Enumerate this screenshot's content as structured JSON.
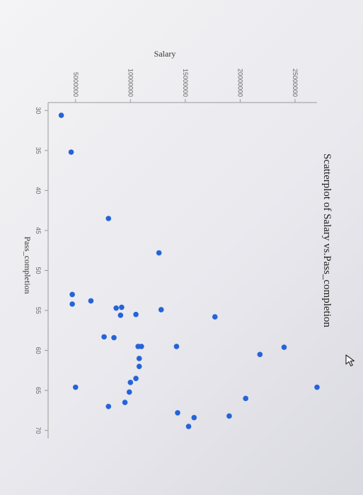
{
  "chart_data": {
    "type": "scatter",
    "title": "Scatterplot of Salary vs.Pass_completion",
    "xlabel": "Pass_completion",
    "ylabel": "Salary",
    "xlim": [
      29,
      71
    ],
    "ylim": [
      2500000,
      27000000
    ],
    "x_ticks": [
      30,
      35,
      40,
      45,
      50,
      55,
      60,
      65,
      70
    ],
    "y_ticks": [
      5000000,
      10000000,
      15000000,
      20000000,
      25000000
    ],
    "grid": false,
    "point_color": "#2563d9",
    "points": [
      {
        "x": 30.6,
        "y": 3700000
      },
      {
        "x": 35.2,
        "y": 4600000
      },
      {
        "x": 43.5,
        "y": 8000000
      },
      {
        "x": 47.8,
        "y": 12600000
      },
      {
        "x": 53.0,
        "y": 4700000
      },
      {
        "x": 53.8,
        "y": 6400000
      },
      {
        "x": 54.2,
        "y": 4700000
      },
      {
        "x": 54.6,
        "y": 9200000
      },
      {
        "x": 54.7,
        "y": 8700000
      },
      {
        "x": 54.9,
        "y": 12800000
      },
      {
        "x": 55.6,
        "y": 9100000
      },
      {
        "x": 55.5,
        "y": 10500000
      },
      {
        "x": 55.8,
        "y": 17700000
      },
      {
        "x": 58.3,
        "y": 7600000
      },
      {
        "x": 58.4,
        "y": 8500000
      },
      {
        "x": 59.5,
        "y": 10700000
      },
      {
        "x": 59.5,
        "y": 11000000
      },
      {
        "x": 59.5,
        "y": 14200000
      },
      {
        "x": 59.6,
        "y": 24000000
      },
      {
        "x": 60.5,
        "y": 21800000
      },
      {
        "x": 61.0,
        "y": 10800000
      },
      {
        "x": 62.0,
        "y": 10800000
      },
      {
        "x": 63.5,
        "y": 10500000
      },
      {
        "x": 64.0,
        "y": 10000000
      },
      {
        "x": 64.6,
        "y": 5000000
      },
      {
        "x": 64.6,
        "y": 27000000
      },
      {
        "x": 65.2,
        "y": 9900000
      },
      {
        "x": 66.0,
        "y": 20500000
      },
      {
        "x": 66.5,
        "y": 9500000
      },
      {
        "x": 67.0,
        "y": 8000000
      },
      {
        "x": 67.8,
        "y": 14300000
      },
      {
        "x": 68.2,
        "y": 19000000
      },
      {
        "x": 68.4,
        "y": 15800000
      },
      {
        "x": 69.5,
        "y": 15300000
      }
    ]
  }
}
